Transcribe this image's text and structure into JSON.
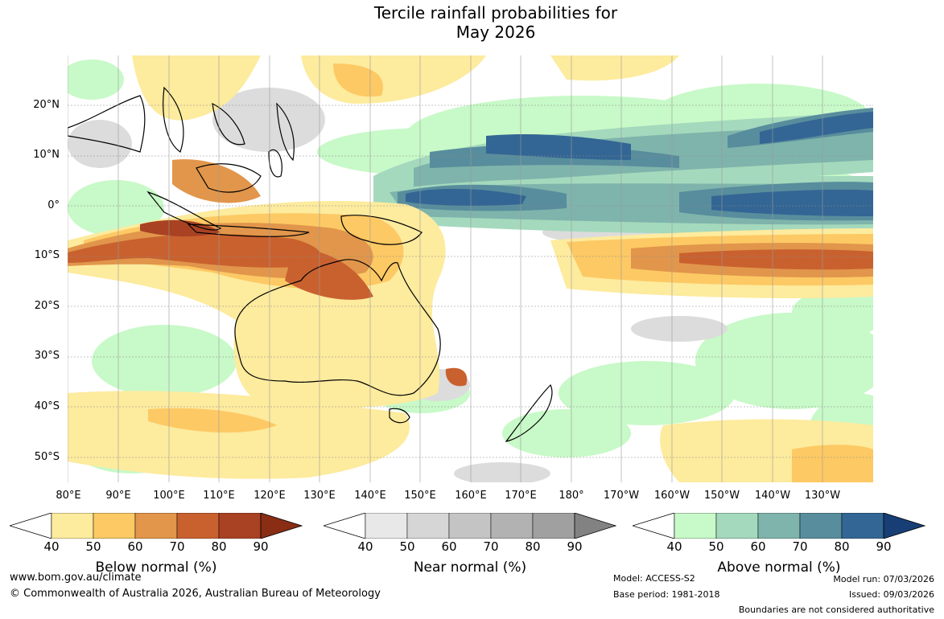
{
  "title": {
    "line1": "Tercile rainfall probabilities for",
    "line2": "May 2026"
  },
  "map": {
    "lat_ticks": [
      "20°N",
      "10°N",
      "0°",
      "10°S",
      "20°S",
      "30°S",
      "40°S",
      "50°S"
    ],
    "lon_ticks": [
      "80°E",
      "90°E",
      "100°E",
      "110°E",
      "120°E",
      "130°E",
      "140°E",
      "150°E",
      "160°E",
      "170°E",
      "180°",
      "170°W",
      "160°W",
      "150°W",
      "140°W",
      "130°W"
    ]
  },
  "colorbars": [
    {
      "id": "below",
      "title": "Below normal (%)",
      "ticks": [
        "40",
        "50",
        "60",
        "70",
        "80",
        "90"
      ],
      "colors": [
        "#fdeb9e",
        "#fdc964",
        "#e1964b",
        "#c9612f",
        "#a84223",
        "#8a2d15"
      ]
    },
    {
      "id": "near",
      "title": "Near normal (%)",
      "ticks": [
        "40",
        "50",
        "60",
        "70",
        "80",
        "90"
      ],
      "colors": [
        "#e8e8e8",
        "#d6d6d6",
        "#c4c4c4",
        "#b2b2b2",
        "#a0a0a0",
        "#828282"
      ]
    },
    {
      "id": "above",
      "title": "Above normal (%)",
      "ticks": [
        "40",
        "50",
        "60",
        "70",
        "80",
        "90"
      ],
      "colors": [
        "#c8f9c8",
        "#a4d9bd",
        "#7fb4ac",
        "#588d9d",
        "#336694",
        "#173f75"
      ]
    }
  ],
  "footer": {
    "url": "www.bom.gov.au/climate",
    "copyright": "© Commonwealth of Australia 2026, Australian Bureau of Meteorology",
    "model": "Model: ACCESS-S2",
    "base_period": "Base period: 1981-2018",
    "model_run": "Model run: 07/03/2026",
    "issued": "Issued: 09/03/2026",
    "boundaries_note": "Boundaries are not considered authoritative"
  },
  "colors": {
    "below_light": "#fdeb9e",
    "below_mid": "#fdc964",
    "below_dark": "#c9612f",
    "near": "#dcdcdc",
    "above_light": "#c8f9c8",
    "above_mid": "#7fb4ac",
    "above_dark": "#336694"
  }
}
